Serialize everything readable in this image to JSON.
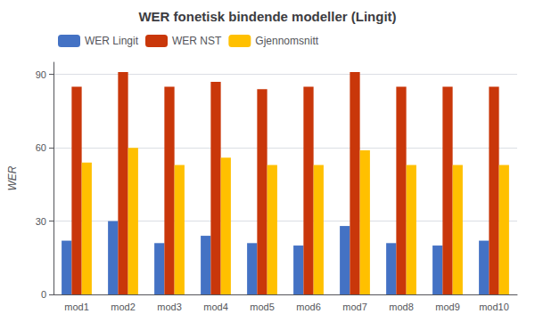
{
  "chart_data": {
    "type": "bar",
    "title": "WER fonetisk bindende modeller (Lingit)",
    "ylabel": "WER",
    "categories": [
      "mod1",
      "mod2",
      "mod3",
      "mod4",
      "mod5",
      "mod6",
      "mod7",
      "mod8",
      "mod9",
      "mod10"
    ],
    "series": [
      {
        "name": "WER Lingit",
        "color": "#4472C4",
        "values": [
          22,
          30,
          21,
          24,
          21,
          20,
          28,
          21,
          20,
          22
        ]
      },
      {
        "name": "WER NST",
        "color": "#C9370A",
        "values": [
          85,
          91,
          85,
          87,
          84,
          85,
          91,
          85,
          85,
          85
        ]
      },
      {
        "name": "Gjennomsnitt",
        "color": "#FFC000",
        "values": [
          54,
          60,
          53,
          56,
          53,
          53,
          59,
          53,
          53,
          53
        ]
      }
    ],
    "ylim": [
      0,
      95
    ],
    "yticks": [
      0,
      30,
      60,
      90
    ],
    "grid": true,
    "legend": "upper left"
  }
}
